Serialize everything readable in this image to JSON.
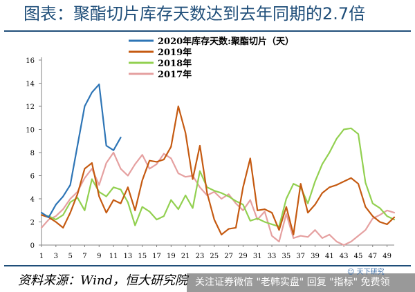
{
  "title": "图表：聚酯切片库存天数达到去年同期的2.7倍",
  "source": "资料来源：Wind，恒大研究院",
  "watermark": {
    "text": "关注证券微信 \"老韩实盘\" 回复 \"指标\" 免费领",
    "float_text": "☺ 天下研究"
  },
  "chart_data": {
    "type": "line",
    "title": "",
    "xlabel": "",
    "ylabel": "",
    "xlim": [
      1,
      50
    ],
    "ylim": [
      0,
      16
    ],
    "yticks": [
      0,
      2,
      4,
      6,
      8,
      10,
      12,
      14,
      16
    ],
    "xticks": [
      1,
      3,
      5,
      7,
      9,
      11,
      13,
      15,
      17,
      19,
      21,
      23,
      25,
      27,
      29,
      31,
      33,
      35,
      37,
      39,
      41,
      43,
      45,
      47,
      49
    ],
    "legend_position": "top-center",
    "grid": false,
    "series": [
      {
        "name": "2020年库存天数:聚酯切片（天）",
        "color": "#2e75b6",
        "points": [
          [
            1,
            2.8
          ],
          [
            2,
            2.4
          ],
          [
            3,
            3.5
          ],
          [
            4,
            4.2
          ],
          [
            5,
            5.2
          ],
          [
            6,
            8.6
          ],
          [
            7,
            12.0
          ],
          [
            8,
            13.2
          ],
          [
            9,
            13.9
          ],
          [
            10,
            8.6
          ],
          [
            11,
            8.2
          ],
          [
            12,
            9.3
          ]
        ]
      },
      {
        "name": "2019年",
        "color": "#c55a11",
        "points": [
          [
            1,
            2.6
          ],
          [
            2,
            2.4
          ],
          [
            3,
            2.0
          ],
          [
            4,
            1.5
          ],
          [
            5,
            2.8
          ],
          [
            6,
            4.4
          ],
          [
            7,
            6.6
          ],
          [
            8,
            7.1
          ],
          [
            9,
            4.2
          ],
          [
            10,
            2.8
          ],
          [
            11,
            3.9
          ],
          [
            12,
            3.6
          ],
          [
            13,
            5.0
          ],
          [
            14,
            3.0
          ],
          [
            15,
            5.6
          ],
          [
            16,
            7.3
          ],
          [
            17,
            7.2
          ],
          [
            18,
            7.4
          ],
          [
            19,
            8.5
          ],
          [
            20,
            12.0
          ],
          [
            21,
            9.7
          ],
          [
            22,
            5.7
          ],
          [
            23,
            8.6
          ],
          [
            24,
            4.5
          ],
          [
            25,
            2.2
          ],
          [
            26,
            0.9
          ],
          [
            27,
            1.4
          ],
          [
            28,
            1.5
          ],
          [
            29,
            5.0
          ],
          [
            30,
            7.5
          ],
          [
            31,
            3.0
          ],
          [
            32,
            3.1
          ],
          [
            33,
            2.8
          ],
          [
            34,
            1.3
          ],
          [
            35,
            3.3
          ],
          [
            36,
            0.9
          ],
          [
            37,
            5.3
          ],
          [
            38,
            2.8
          ],
          [
            39,
            3.5
          ],
          [
            40,
            4.5
          ],
          [
            41,
            5.0
          ],
          [
            42,
            5.2
          ],
          [
            43,
            5.5
          ],
          [
            44,
            5.8
          ],
          [
            45,
            5.3
          ],
          [
            46,
            3.3
          ],
          [
            47,
            2.5
          ],
          [
            48,
            2.0
          ],
          [
            49,
            1.8
          ],
          [
            50,
            2.4
          ]
        ]
      },
      {
        "name": "2018年",
        "color": "#92d050",
        "points": [
          [
            1,
            2.6
          ],
          [
            2,
            2.5
          ],
          [
            3,
            2.2
          ],
          [
            4,
            2.6
          ],
          [
            5,
            3.7
          ],
          [
            6,
            4.1
          ],
          [
            7,
            3.0
          ],
          [
            8,
            5.7
          ],
          [
            9,
            4.6
          ],
          [
            10,
            4.2
          ],
          [
            11,
            5.0
          ],
          [
            12,
            4.8
          ],
          [
            13,
            3.7
          ],
          [
            14,
            1.7
          ],
          [
            15,
            3.3
          ],
          [
            16,
            2.9
          ],
          [
            17,
            2.2
          ],
          [
            18,
            2.5
          ],
          [
            19,
            3.9
          ],
          [
            20,
            3.1
          ],
          [
            21,
            4.3
          ],
          [
            22,
            3.2
          ],
          [
            23,
            6.4
          ],
          [
            24,
            5.0
          ],
          [
            25,
            4.7
          ],
          [
            26,
            4.5
          ],
          [
            27,
            4.2
          ],
          [
            28,
            3.8
          ],
          [
            29,
            3.5
          ],
          [
            30,
            2.1
          ],
          [
            31,
            2.3
          ],
          [
            32,
            2.0
          ],
          [
            33,
            1.8
          ],
          [
            34,
            1.6
          ],
          [
            35,
            4.0
          ],
          [
            36,
            5.3
          ],
          [
            37,
            5.0
          ],
          [
            38,
            3.6
          ],
          [
            39,
            5.5
          ],
          [
            40,
            7.0
          ],
          [
            41,
            8.0
          ],
          [
            42,
            9.2
          ],
          [
            43,
            10.0
          ],
          [
            44,
            10.1
          ],
          [
            45,
            9.6
          ],
          [
            46,
            5.4
          ],
          [
            47,
            3.6
          ],
          [
            48,
            3.2
          ],
          [
            49,
            2.5
          ],
          [
            50,
            2.2
          ]
        ]
      },
      {
        "name": "2017年",
        "color": "#e5a0a0",
        "points": [
          [
            1,
            1.5
          ],
          [
            2,
            2.2
          ],
          [
            3,
            2.5
          ],
          [
            4,
            3.1
          ],
          [
            5,
            4.0
          ],
          [
            6,
            4.6
          ],
          [
            7,
            5.8
          ],
          [
            8,
            6.6
          ],
          [
            9,
            5.2
          ],
          [
            10,
            7.1
          ],
          [
            11,
            8.0
          ],
          [
            12,
            6.6
          ],
          [
            13,
            6.0
          ],
          [
            14,
            7.0
          ],
          [
            15,
            7.8
          ],
          [
            16,
            6.6
          ],
          [
            17,
            7.0
          ],
          [
            18,
            7.9
          ],
          [
            19,
            7.5
          ],
          [
            20,
            6.2
          ],
          [
            21,
            5.9
          ],
          [
            22,
            6.0
          ],
          [
            23,
            5.0
          ],
          [
            24,
            4.3
          ],
          [
            25,
            4.6
          ],
          [
            26,
            4.0
          ],
          [
            27,
            4.4
          ],
          [
            28,
            3.6
          ],
          [
            29,
            3.0
          ],
          [
            30,
            3.9
          ],
          [
            31,
            2.2
          ],
          [
            32,
            2.9
          ],
          [
            33,
            0.8
          ],
          [
            34,
            0.3
          ],
          [
            35,
            2.7
          ],
          [
            36,
            0.6
          ],
          [
            37,
            0.8
          ],
          [
            38,
            0.7
          ],
          [
            39,
            1.3
          ],
          [
            40,
            0.6
          ],
          [
            41,
            0.9
          ],
          [
            42,
            0.3
          ],
          [
            43,
            0.0
          ],
          [
            44,
            0.3
          ],
          [
            45,
            0.8
          ],
          [
            46,
            1.3
          ],
          [
            47,
            2.3
          ],
          [
            48,
            2.6
          ],
          [
            49,
            3.0
          ],
          [
            50,
            2.8
          ]
        ]
      }
    ]
  }
}
